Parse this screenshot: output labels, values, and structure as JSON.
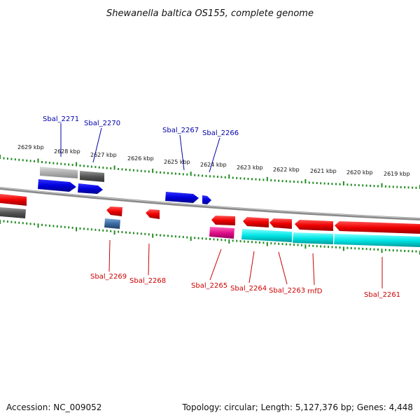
{
  "title": "Shewanella baltica OS155, complete genome",
  "footer": {
    "accession": "Accession: NC_009052",
    "summary": "Topology: circular; Length: 5,127,376 bp; Genes: 4,448"
  },
  "kbp_labels": [
    "2629 kbp",
    "2628 kbp",
    "2627 kbp",
    "2626 kbp",
    "2625 kbp",
    "2624 kbp",
    "2623 kbp",
    "2622 kbp",
    "2621 kbp",
    "2620 kbp",
    "2619 kbp"
  ],
  "top_gene_labels": [
    "Sbal_2271",
    "Sbal_2270",
    "Sbal_2267",
    "Sbal_2266"
  ],
  "bottom_gene_labels": [
    "Sbal_2269",
    "Sbal_2268",
    "Sbal_2265",
    "Sbal_2264",
    "Sbal_2263",
    "rnfD",
    "Sbal_2261"
  ],
  "colors": {
    "backbone": "#8a8a8a",
    "tick": "#228b22",
    "forward_cds": "#0000dd",
    "reverse_cds": "#ee0000",
    "cog_gray_light": "#b0b0b0",
    "cog_gray_dark": "#555555",
    "cog_cyan": "#00e5e5",
    "cog_magenta": "#e0108a",
    "cog_steelblue": "#3a6aa0"
  }
}
